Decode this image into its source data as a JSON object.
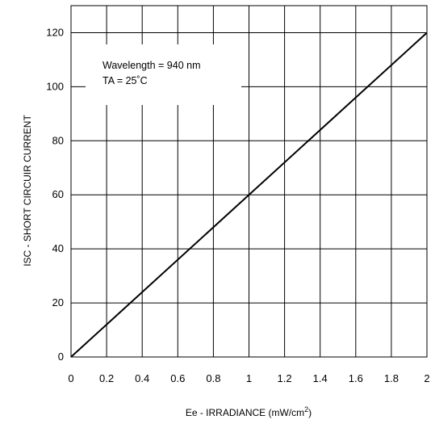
{
  "chart_data": {
    "type": "line",
    "xlabel": "Ee - IRRADIANCE (mW/cm",
    "xlabel_superscript": "2",
    "xlabel_suffix": ")",
    "ylabel": "ISC - SHORT CIRCUIR CURRENT",
    "xlim": [
      0,
      2
    ],
    "ylim": [
      0,
      130
    ],
    "x_ticks": [
      0,
      0.2,
      0.4,
      0.6,
      0.8,
      1,
      1.2,
      1.4,
      1.6,
      1.8,
      2
    ],
    "x_tick_labels": [
      "0",
      "0.2",
      "0.4",
      "0.6",
      "0.8",
      "1",
      "1.2",
      "1.4",
      "1.6",
      "1.8",
      "2"
    ],
    "y_ticks": [
      0,
      20,
      40,
      60,
      80,
      100,
      120
    ],
    "y_tick_labels": [
      "0",
      "20",
      "40",
      "60",
      "80",
      "100",
      "120"
    ],
    "grid": true,
    "series": [
      {
        "x": [
          0,
          2
        ],
        "y": [
          0,
          120
        ]
      }
    ],
    "annotations": [
      "Wavelength = 940 nm",
      "TA = 25˚C"
    ]
  }
}
